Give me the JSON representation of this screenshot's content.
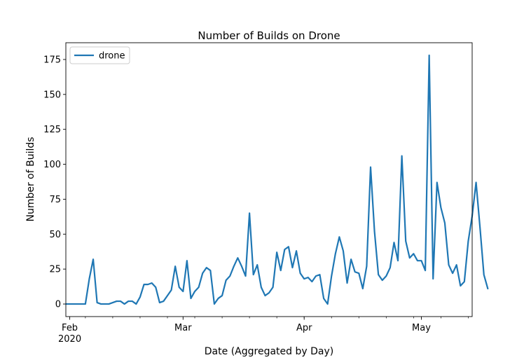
{
  "chart_data": {
    "type": "line",
    "title": "Number of Builds on Drone",
    "xlabel": "Date (Aggregated by Day)",
    "ylabel": "Number of Builds",
    "ylim": [
      -9,
      187
    ],
    "yticks": [
      0,
      25,
      50,
      75,
      100,
      125,
      150,
      175
    ],
    "x_start_day": 0,
    "x_end_day": 104,
    "xticks": [
      {
        "day": 1,
        "label": "Feb",
        "sublabel": "2020"
      },
      {
        "day": 30,
        "label": "Mar",
        "sublabel": ""
      },
      {
        "day": 61,
        "label": "Apr",
        "sublabel": ""
      },
      {
        "day": 91,
        "label": "May",
        "sublabel": ""
      }
    ],
    "legend": {
      "position": "top-left"
    },
    "series": [
      {
        "name": "drone",
        "color": "#1f77b4",
        "values": [
          0,
          0,
          0,
          0,
          0,
          0,
          18,
          32,
          1,
          0,
          0,
          0,
          1,
          2,
          2,
          0,
          2,
          2,
          0,
          5,
          14,
          14,
          15,
          12,
          1,
          2,
          6,
          10,
          27,
          12,
          9,
          31,
          4,
          9,
          12,
          22,
          26,
          24,
          0,
          4,
          6,
          17,
          20,
          27,
          33,
          27,
          20,
          65,
          21,
          28,
          12,
          6,
          8,
          12,
          37,
          24,
          39,
          41,
          26,
          38,
          22,
          18,
          19,
          16,
          20,
          21,
          4,
          0,
          20,
          36,
          48,
          38,
          15,
          32,
          23,
          22,
          11,
          27,
          98,
          52,
          21,
          17,
          20,
          26,
          44,
          31,
          106,
          45,
          33,
          36,
          31,
          31,
          24,
          178,
          18,
          87,
          69,
          58,
          28,
          22,
          28,
          13,
          16,
          45,
          63,
          87,
          55,
          21,
          11
        ]
      }
    ]
  }
}
